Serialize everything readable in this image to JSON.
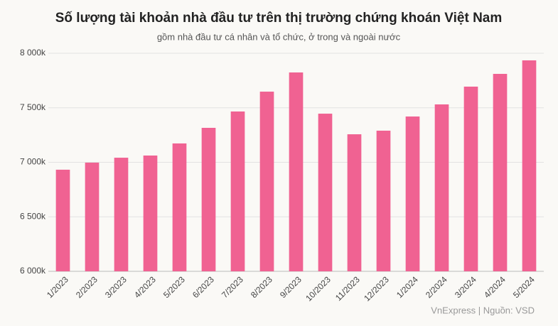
{
  "chart_data": {
    "type": "bar",
    "title": "Số lượng tài khoản nhà đầu tư trên thị trường chứng khoán Việt Nam",
    "subtitle": "gồm nhà đầu tư cá nhân và tổ chức, ở trong và ngoài nước",
    "source": "VnExpress | Nguồn: VSD",
    "categories": [
      "1/2023",
      "2/2023",
      "3/2023",
      "4/2023",
      "5/2023",
      "6/2023",
      "7/2023",
      "8/2023",
      "9/2023",
      "10/2023",
      "11/2023",
      "12/2023",
      "1/2024",
      "2/2024",
      "3/2024",
      "4/2024",
      "5/2024"
    ],
    "values": [
      6932,
      6997,
      7042,
      7062,
      7173,
      7316,
      7466,
      7648,
      7824,
      7446,
      7257,
      7290,
      7420,
      7531,
      7694,
      7811,
      7935
    ],
    "color": "#f06292",
    "ylim": [
      6000,
      8000
    ],
    "yticks": [
      {
        "value": 6000,
        "label": "6 000k"
      },
      {
        "value": 6500,
        "label": "6 500k"
      },
      {
        "value": 7000,
        "label": "7 000k"
      },
      {
        "value": 7500,
        "label": "7 500k"
      },
      {
        "value": 8000,
        "label": "8 000k"
      }
    ],
    "grid": true
  }
}
